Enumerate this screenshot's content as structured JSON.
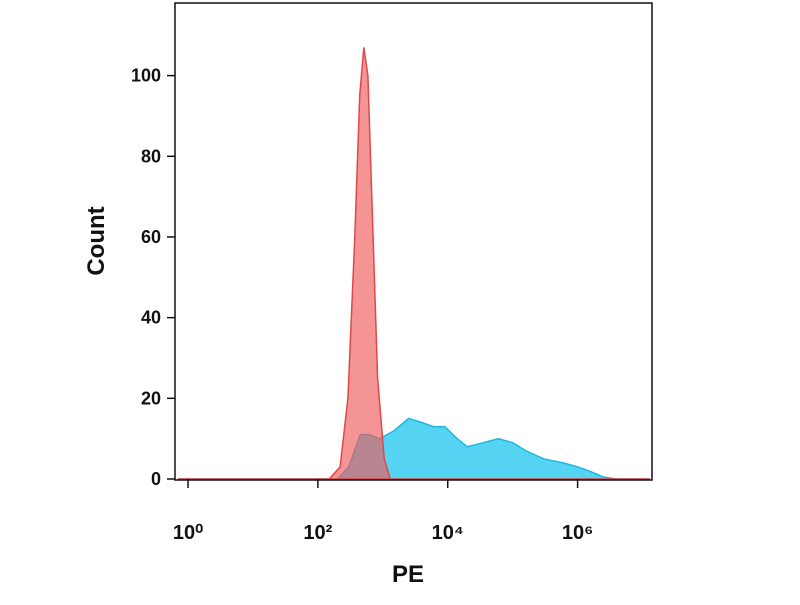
{
  "chart_data": {
    "type": "area",
    "x_label": "PE",
    "y_label": "Count",
    "xscale": "log",
    "xlim": [
      0.63,
      14000000
    ],
    "ylim": [
      0,
      118
    ],
    "xticks": [
      {
        "value": 1,
        "label": "10⁰"
      },
      {
        "value": 100,
        "label": "10²"
      },
      {
        "value": 10000,
        "label": "10⁴"
      },
      {
        "value": 1000000,
        "label": "10⁶"
      }
    ],
    "yticks": [
      0,
      20,
      40,
      60,
      80,
      100
    ],
    "series": [
      {
        "color": "#1fb8e0",
        "fill": "#55d3f2",
        "x": [
          0.7,
          200,
          300,
          450,
          600,
          900,
          1500,
          2500,
          4000,
          6000,
          9000,
          14000,
          20000,
          35000,
          60000,
          100000,
          160000,
          300000,
          600000,
          1000000,
          1500000,
          2500000,
          4000000,
          13000000
        ],
        "values": [
          0,
          0,
          3,
          11,
          11,
          10,
          12,
          15,
          14,
          13,
          13,
          10,
          8,
          9,
          10,
          9,
          7,
          5,
          4,
          3,
          2,
          0.5,
          0,
          0
        ]
      },
      {
        "color": "#e04848",
        "fill": "rgba(240,90,90,0.65)",
        "x": [
          0.7,
          150,
          220,
          290,
          370,
          440,
          510,
          590,
          710,
          830,
          1050,
          1300,
          13000000
        ],
        "values": [
          0,
          0,
          3,
          20,
          60,
          95,
          107,
          100,
          60,
          25,
          5,
          0,
          0
        ]
      }
    ]
  }
}
